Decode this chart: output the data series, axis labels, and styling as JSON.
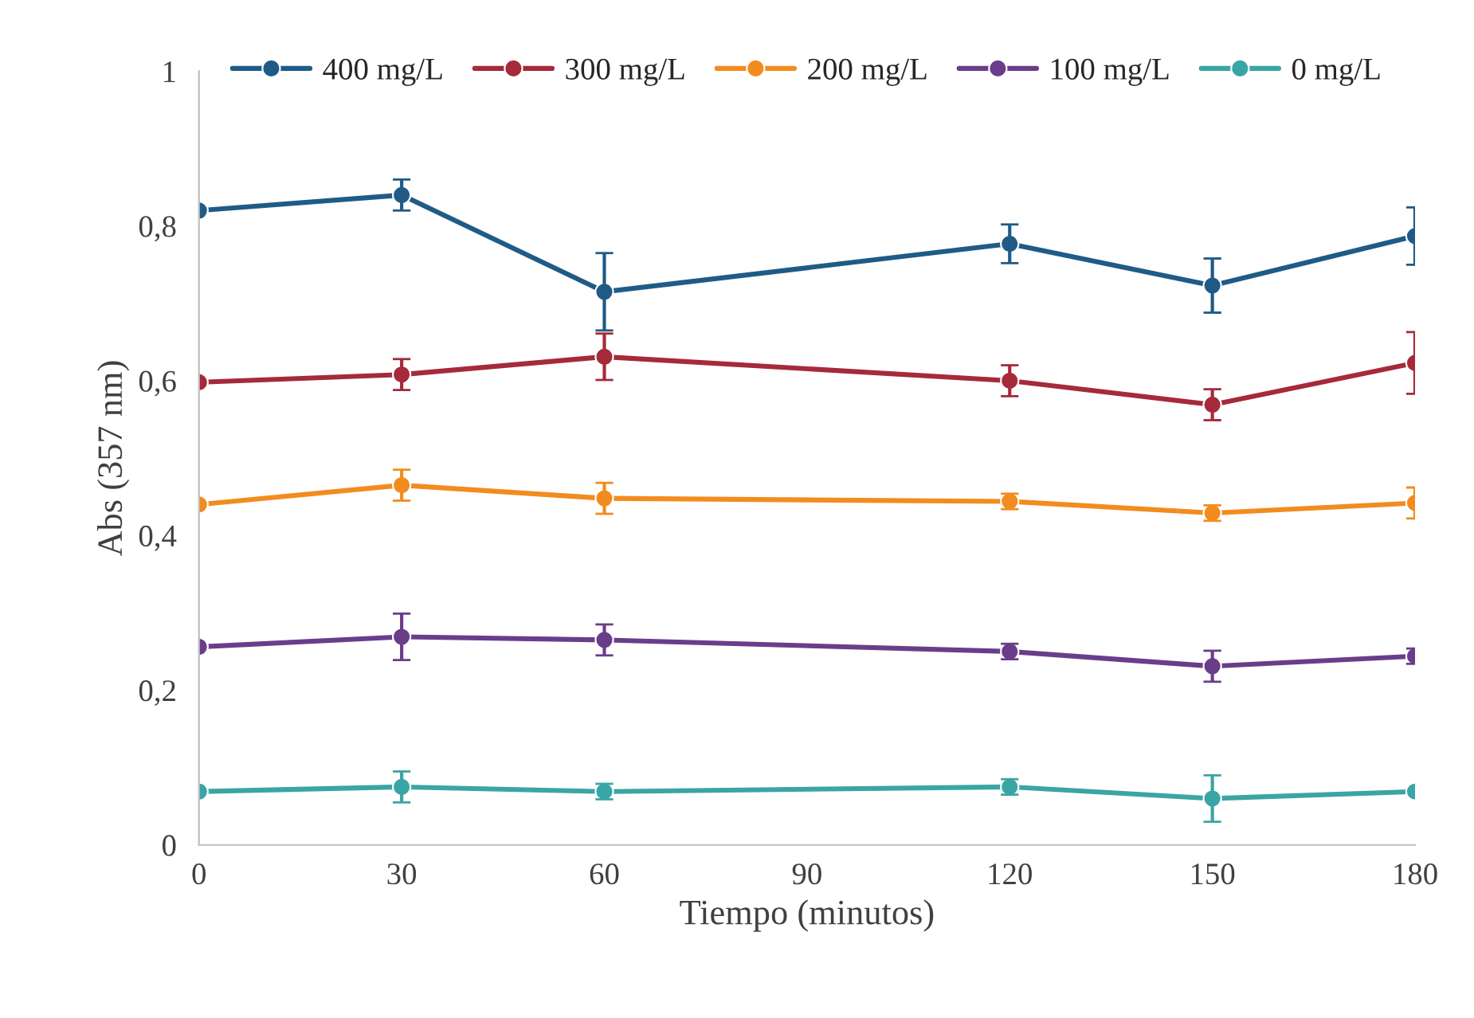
{
  "chart_data": {
    "type": "line",
    "xlabel": "Tiempo (minutos)",
    "ylabel": "Abs (357 nm)",
    "x": [
      0,
      30,
      60,
      120,
      150,
      180
    ],
    "series": [
      {
        "name": "400 mg/L",
        "color": "#1f5b86",
        "values": [
          0.82,
          0.84,
          0.715,
          0.777,
          0.723,
          0.787
        ],
        "errors": [
          null,
          0.02,
          0.05,
          0.025,
          0.035,
          0.037
        ]
      },
      {
        "name": "300 mg/L",
        "color": "#a52a3a",
        "values": [
          0.598,
          0.608,
          0.631,
          0.6,
          0.569,
          0.623
        ],
        "errors": [
          null,
          0.02,
          0.03,
          0.02,
          0.02,
          0.04
        ]
      },
      {
        "name": "200 mg/L",
        "color": "#f28c1e",
        "values": [
          0.44,
          0.465,
          0.448,
          0.444,
          0.429,
          0.442
        ],
        "errors": [
          null,
          0.02,
          0.02,
          0.01,
          0.01,
          0.02
        ]
      },
      {
        "name": "100 mg/L",
        "color": "#6a3d8a",
        "values": [
          0.256,
          0.269,
          0.265,
          0.25,
          0.231,
          0.244
        ],
        "errors": [
          null,
          0.03,
          0.02,
          0.01,
          0.02,
          0.01
        ]
      },
      {
        "name": "0 mg/L",
        "color": "#3aa5a5",
        "values": [
          0.069,
          0.075,
          0.069,
          0.075,
          0.06,
          0.069
        ],
        "errors": [
          null,
          0.02,
          0.01,
          0.01,
          0.03,
          null
        ]
      }
    ],
    "xlim": [
      0,
      180
    ],
    "xticks": [
      0,
      30,
      60,
      90,
      120,
      150,
      180
    ],
    "ylim": [
      0,
      1
    ],
    "yticks": [
      0,
      {
        "value": 0.2,
        "label": "0,2"
      },
      {
        "value": 0.4,
        "label": "0,4"
      },
      {
        "value": 0.6,
        "label": "0,6"
      },
      {
        "value": 0.8,
        "label": "0,8"
      },
      1
    ],
    "grid": false,
    "legend": "top",
    "marker": "circle",
    "line_style": "solid"
  }
}
